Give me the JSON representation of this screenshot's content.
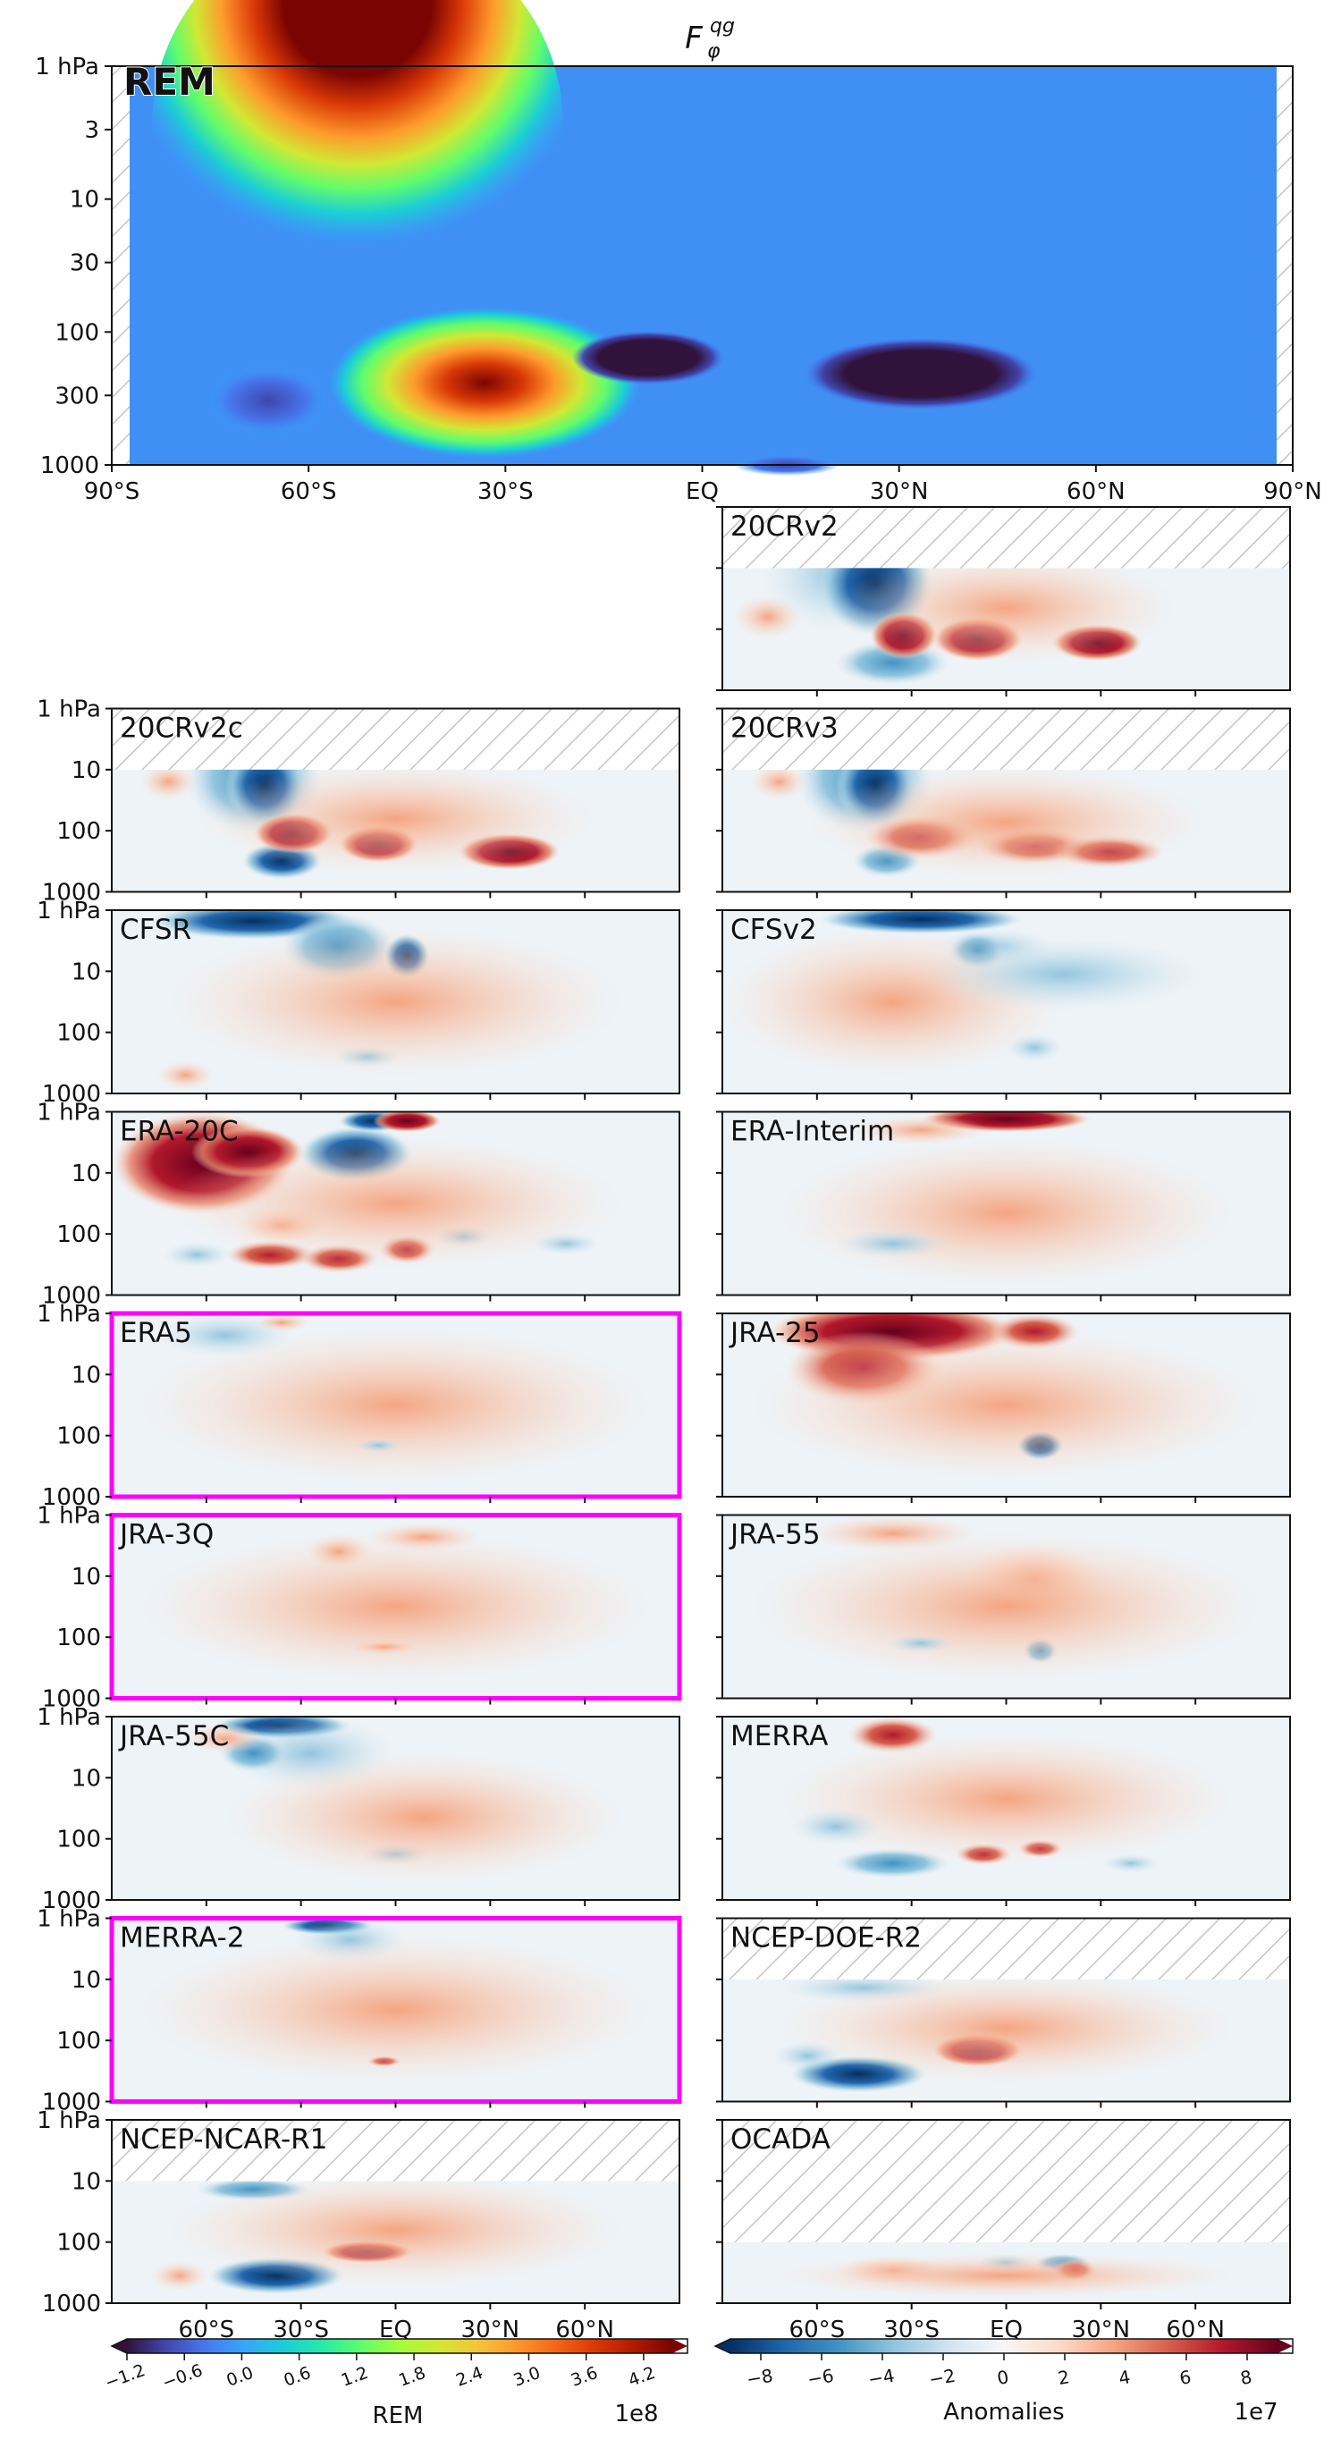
{
  "chart_data": {
    "type": "contour-panels",
    "title": "F_φ^qg",
    "title_superscript": "qg",
    "title_subscript": "φ",
    "x_ticks_top": [
      "90°S",
      "60°S",
      "30°S",
      "EQ",
      "30°N",
      "60°N",
      "90°N"
    ],
    "x_ticks_bottom": [
      "60°S",
      "30°S",
      "EQ",
      "30°N",
      "60°N"
    ],
    "y_ticks_top": [
      "1 hPa",
      "3",
      "10",
      "30",
      "100",
      "300",
      "1000"
    ],
    "y_ticks_small": [
      "1 hPa",
      "10",
      "100",
      "1000"
    ],
    "xlim": [
      -90,
      90
    ],
    "ylim_hpa": [
      1000,
      1
    ],
    "top_panel": {
      "label": "REM",
      "units": "REM (1e8)"
    },
    "panels": [
      {
        "label": "20CRv2",
        "col": "right",
        "row": 0,
        "top_hpa": 10,
        "highlight": false
      },
      {
        "label": "20CRv2c",
        "col": "left",
        "row": 1,
        "top_hpa": 10,
        "highlight": false
      },
      {
        "label": "20CRv3",
        "col": "right",
        "row": 1,
        "top_hpa": 10,
        "highlight": false
      },
      {
        "label": "CFSR",
        "col": "left",
        "row": 2,
        "top_hpa": 1,
        "highlight": false
      },
      {
        "label": "CFSv2",
        "col": "right",
        "row": 2,
        "top_hpa": 1,
        "highlight": false
      },
      {
        "label": "ERA-20C",
        "col": "left",
        "row": 3,
        "top_hpa": 1,
        "highlight": false
      },
      {
        "label": "ERA-Interim",
        "col": "right",
        "row": 3,
        "top_hpa": 1,
        "highlight": false
      },
      {
        "label": "ERA5",
        "col": "left",
        "row": 4,
        "top_hpa": 1,
        "highlight": true
      },
      {
        "label": "JRA-25",
        "col": "right",
        "row": 4,
        "top_hpa": 1,
        "highlight": false
      },
      {
        "label": "JRA-3Q",
        "col": "left",
        "row": 5,
        "top_hpa": 1,
        "highlight": true
      },
      {
        "label": "JRA-55",
        "col": "right",
        "row": 5,
        "top_hpa": 1,
        "highlight": false
      },
      {
        "label": "JRA-55C",
        "col": "left",
        "row": 6,
        "top_hpa": 1,
        "highlight": false
      },
      {
        "label": "MERRA",
        "col": "right",
        "row": 6,
        "top_hpa": 1,
        "highlight": false
      },
      {
        "label": "MERRA-2",
        "col": "left",
        "row": 7,
        "top_hpa": 1,
        "highlight": true
      },
      {
        "label": "NCEP-DOE-R2",
        "col": "right",
        "row": 7,
        "top_hpa": 10,
        "highlight": false
      },
      {
        "label": "NCEP-NCAR-R1",
        "col": "left",
        "row": 8,
        "top_hpa": 10,
        "highlight": false
      },
      {
        "label": "OCADA",
        "col": "right",
        "row": 8,
        "top_hpa": 100,
        "highlight": false
      }
    ],
    "colorbar_rem": {
      "ticks": [
        "−1.2",
        "−0.6",
        "0.0",
        "0.6",
        "1.2",
        "1.8",
        "2.4",
        "3.0",
        "3.6",
        "4.2"
      ],
      "label": "REM",
      "multiplier": "1e8"
    },
    "colorbar_anomalies": {
      "ticks": [
        "−8",
        "−6",
        "−4",
        "−2",
        "0",
        "2",
        "4",
        "6",
        "8"
      ],
      "label": "Anomalies",
      "multiplier": "1e7"
    }
  },
  "colors": {
    "highlight": "#ff00ff",
    "rem_palette": [
      "#30123b",
      "#4145ab",
      "#4675ed",
      "#39a2fc",
      "#1bcfd4",
      "#24eca6",
      "#61fc6c",
      "#a4fc3b",
      "#d1e834",
      "#f3c63a",
      "#fe9b2d",
      "#f36315",
      "#d93806",
      "#b11901",
      "#7a0402"
    ],
    "anom_palette": [
      "#053061",
      "#2166ac",
      "#4393c3",
      "#92c5de",
      "#d1e5f0",
      "#f7f7f7",
      "#fddbc7",
      "#f4a582",
      "#d6604d",
      "#b2182b",
      "#67001f"
    ]
  }
}
